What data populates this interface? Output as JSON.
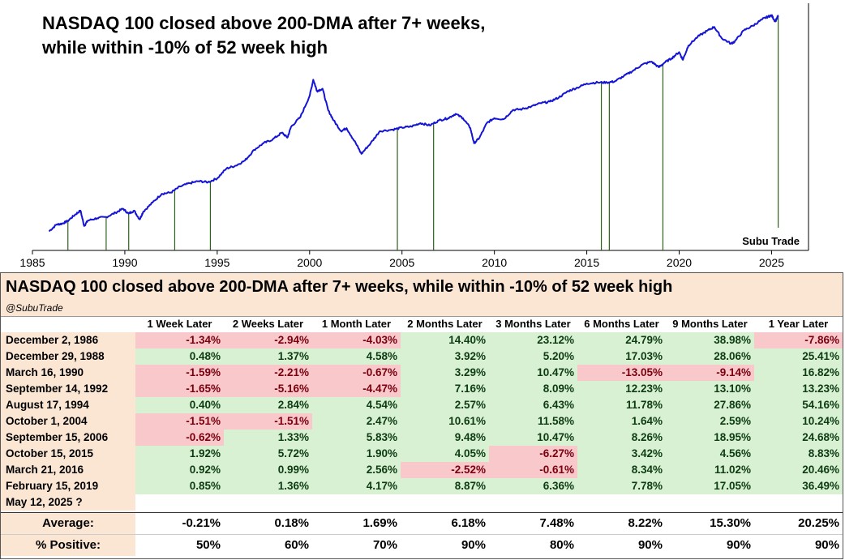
{
  "chart_title": "NASDAQ 100 closed above 200-DMA after 7+ weeks,\nwhile within -10% of 52 week high",
  "chart_watermark": "Subu Trade",
  "chart_data": {
    "type": "line",
    "title": "NASDAQ 100 closed above 200-DMA after 7+ weeks,\nwhile within -10% of 52 week high",
    "y_scale": "log",
    "y_axis_visible": false,
    "xlim": [
      1985,
      2027
    ],
    "x_ticks": [
      1985,
      1990,
      1995,
      2000,
      2005,
      2010,
      2015,
      2020,
      2025
    ],
    "line_color": "#1414d6",
    "signal_line_color": "#2f5f1a",
    "series": [
      {
        "x": [
          1985.9,
          1986.3,
          1986.6,
          1986.9,
          1987.3,
          1987.6,
          1987.8,
          1988.0,
          1988.5,
          1989.0,
          1989.5,
          1989.9,
          1990.2,
          1990.5,
          1990.8,
          1991.0,
          1991.5,
          1992.0,
          1992.5,
          1993.0,
          1993.5,
          1994.0,
          1994.5,
          1995.0,
          1995.5,
          1996.0,
          1996.5,
          1997.0,
          1997.5,
          1998.0,
          1998.5,
          1998.8,
          1999.0,
          1999.5,
          2000.0,
          2000.2,
          2000.4,
          2000.7,
          2001.0,
          2001.3,
          2001.7,
          2002.0,
          2002.5,
          2002.8,
          2003.3,
          2003.8,
          2004.5,
          2005.0,
          2005.5,
          2006.0,
          2006.5,
          2007.0,
          2007.5,
          2007.9,
          2008.3,
          2008.7,
          2008.9,
          2009.2,
          2009.6,
          2010.0,
          2010.5,
          2011.0,
          2011.5,
          2012.0,
          2012.5,
          2013.0,
          2013.5,
          2014.0,
          2014.5,
          2015.0,
          2015.6,
          2016.1,
          2016.5,
          2017.0,
          2017.5,
          2018.0,
          2018.5,
          2018.9,
          2019.2,
          2019.6,
          2020.0,
          2020.2,
          2020.5,
          2021.0,
          2021.5,
          2021.9,
          2022.3,
          2022.8,
          2023.0,
          2023.5,
          2024.0,
          2024.5,
          2024.8,
          2025.0,
          2025.2,
          2025.37
        ],
        "y": [
          132,
          155,
          158,
          168,
          195,
          215,
          150,
          170,
          180,
          185,
          205,
          225,
          200,
          215,
          175,
          210,
          260,
          320,
          330,
          380,
          410,
          430,
          420,
          460,
          580,
          620,
          700,
          900,
          1050,
          1150,
          1350,
          1200,
          1550,
          1950,
          3200,
          4700,
          3600,
          3800,
          2300,
          1800,
          1400,
          1500,
          1050,
          820,
          1050,
          1400,
          1450,
          1520,
          1560,
          1690,
          1600,
          1800,
          1900,
          2100,
          1900,
          1500,
          1050,
          1200,
          1700,
          1900,
          1850,
          2300,
          2350,
          2500,
          2700,
          2800,
          3100,
          3600,
          3900,
          4300,
          4400,
          4400,
          4500,
          5100,
          5800,
          6700,
          7200,
          6300,
          7000,
          7800,
          9000,
          7500,
          10500,
          12900,
          14800,
          16300,
          12500,
          11000,
          11500,
          15000,
          16800,
          19500,
          20700,
          21400,
          18500,
          21400
        ]
      }
    ],
    "signal_lines_x": [
      1986.92,
      1988.99,
      1990.21,
      1992.7,
      1994.63,
      2004.75,
      2006.71,
      2015.79,
      2016.22,
      2019.12,
      2025.36
    ]
  },
  "table": {
    "title": "NASDAQ 100 closed above 200-DMA after 7+ weeks, while within -10% of 52 week high",
    "handle": "@SubuTrade",
    "columns": [
      "1 Week Later",
      "2 Weeks Later",
      "1 Month Later",
      "2 Months Later",
      "3 Months Later",
      "6 Months Later",
      "9 Months Later",
      "1 Year Later"
    ],
    "rows": [
      {
        "date": "December 2, 1986",
        "values": [
          "-1.34%",
          "-2.94%",
          "-4.03%",
          "14.40%",
          "23.12%",
          "24.79%",
          "38.98%",
          "-7.86%"
        ]
      },
      {
        "date": "December 29, 1988",
        "values": [
          "0.48%",
          "1.37%",
          "4.58%",
          "3.92%",
          "5.20%",
          "17.03%",
          "28.06%",
          "25.41%"
        ]
      },
      {
        "date": "March 16, 1990",
        "values": [
          "-1.59%",
          "-2.21%",
          "-0.67%",
          "3.29%",
          "10.47%",
          "-13.05%",
          "-9.14%",
          "16.82%"
        ]
      },
      {
        "date": "September 14, 1992",
        "values": [
          "-1.65%",
          "-5.16%",
          "-4.47%",
          "7.16%",
          "8.09%",
          "12.23%",
          "13.10%",
          "13.23%"
        ]
      },
      {
        "date": "August 17, 1994",
        "values": [
          "0.40%",
          "2.84%",
          "4.54%",
          "2.57%",
          "6.43%",
          "11.78%",
          "27.86%",
          "54.16%"
        ]
      },
      {
        "date": "October 1, 2004",
        "values": [
          "-1.51%",
          "-1.51%",
          "2.47%",
          "10.61%",
          "11.58%",
          "1.64%",
          "2.59%",
          "10.24%"
        ]
      },
      {
        "date": "September 15, 2006",
        "values": [
          "-0.62%",
          "1.33%",
          "5.83%",
          "9.48%",
          "10.47%",
          "8.26%",
          "18.95%",
          "24.68%"
        ]
      },
      {
        "date": "October 15, 2015",
        "values": [
          "1.92%",
          "5.72%",
          "1.90%",
          "4.05%",
          "-6.27%",
          "3.42%",
          "4.56%",
          "8.83%"
        ]
      },
      {
        "date": "March 21, 2016",
        "values": [
          "0.92%",
          "0.99%",
          "2.56%",
          "-2.52%",
          "-0.61%",
          "8.34%",
          "11.02%",
          "20.46%"
        ]
      },
      {
        "date": "February 15, 2019",
        "values": [
          "0.85%",
          "1.36%",
          "4.17%",
          "8.87%",
          "6.36%",
          "7.78%",
          "17.05%",
          "36.49%"
        ]
      },
      {
        "date": "May 12, 2025 ?",
        "values": [
          "",
          "",
          "",
          "",
          "",
          "",
          "",
          ""
        ]
      }
    ],
    "summary": [
      {
        "label": "Average:",
        "values": [
          "-0.21%",
          "0.18%",
          "1.69%",
          "6.18%",
          "7.48%",
          "8.22%",
          "15.30%",
          "20.25%"
        ]
      },
      {
        "label": "% Positive:",
        "values": [
          "50%",
          "60%",
          "70%",
          "90%",
          "80%",
          "90%",
          "90%",
          "90%"
        ]
      }
    ]
  }
}
